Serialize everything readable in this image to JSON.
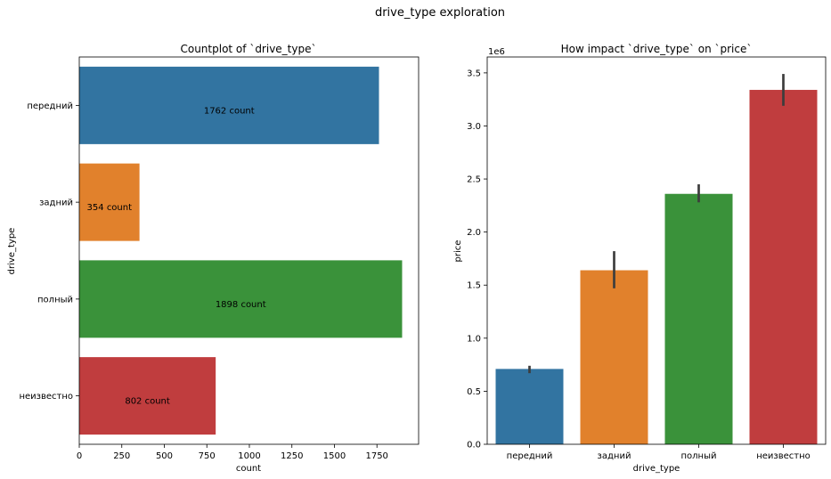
{
  "suptitle": "drive_type exploration",
  "chart_data": [
    {
      "type": "bar",
      "orientation": "horizontal",
      "title": "Countplot of `drive_type`",
      "xlabel": "count",
      "ylabel": "drive_type",
      "xlim": [
        0,
        1995
      ],
      "x_ticks": [
        0,
        250,
        500,
        750,
        1000,
        1250,
        1500,
        1750
      ],
      "categories": [
        "передний",
        "задний",
        "полный",
        "неизвестно"
      ],
      "values": [
        1762,
        354,
        1898,
        802
      ],
      "bar_labels": [
        "1762 count",
        "354 count",
        "1898 count",
        "802 count"
      ],
      "colors": [
        "#3274a1",
        "#e1812c",
        "#3a923a",
        "#c03d3e"
      ],
      "grid": false
    },
    {
      "type": "bar",
      "orientation": "vertical",
      "title": "How impact `drive_type` on `price`",
      "xlabel": "drive_type",
      "ylabel": "price",
      "y_offset_label": "1e6",
      "ylim": [
        0,
        3.65
      ],
      "y_ticks": [
        0.0,
        0.5,
        1.0,
        1.5,
        2.0,
        2.5,
        3.0,
        3.5
      ],
      "y_tick_labels": [
        "0.0",
        "0.5",
        "1.0",
        "1.5",
        "2.0",
        "2.5",
        "3.0",
        "3.5"
      ],
      "categories": [
        "передний",
        "задний",
        "полный",
        "неизвестно"
      ],
      "values": [
        0.71,
        1.64,
        2.36,
        3.34
      ],
      "error_low": [
        0.67,
        1.47,
        2.28,
        3.19
      ],
      "error_high": [
        0.74,
        1.82,
        2.45,
        3.49
      ],
      "colors": [
        "#3274a1",
        "#e1812c",
        "#3a923a",
        "#c03d3e"
      ],
      "grid": false
    }
  ]
}
